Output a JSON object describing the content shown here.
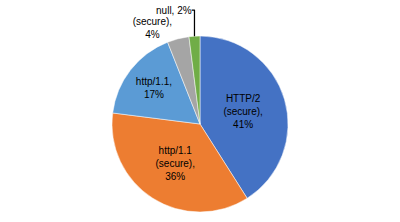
{
  "chart_data": {
    "type": "pie",
    "categories": [
      "HTTP/2\n(secure),\n41%",
      "http/1.1\n(secure),\n36%",
      "http/1.1,\n17%",
      "(secure),\n4%",
      "null, 2%"
    ],
    "values": [
      41,
      36,
      17,
      4,
      2
    ],
    "colors": [
      "#4472C4",
      "#ED7D31",
      "#5B9BD5",
      "#A5A5A5",
      "#70AD47"
    ]
  }
}
